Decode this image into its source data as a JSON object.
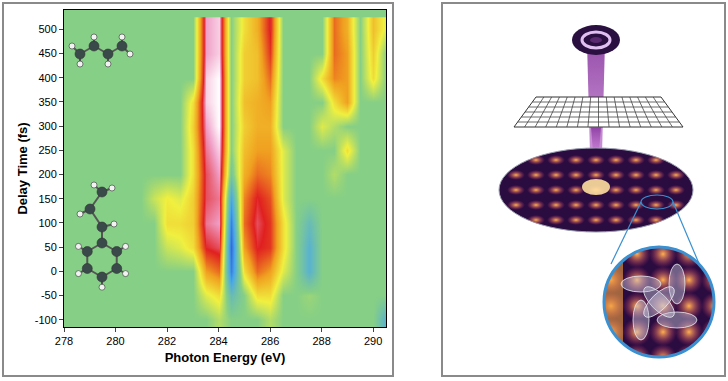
{
  "chart_data": {
    "type": "heatmap",
    "x_label": "Photon Energy (eV)",
    "y_label": "Delay Time (fs)",
    "x": [
      278,
      278.5,
      279,
      279.5,
      280,
      280.5,
      281,
      281.5,
      282,
      282.5,
      283,
      283.5,
      284,
      284.5,
      285,
      285.5,
      286,
      286.5,
      287,
      287.5,
      288,
      288.5,
      289,
      289.5,
      290,
      290.5
    ],
    "y": [
      -100,
      -50,
      0,
      50,
      100,
      150,
      200,
      250,
      300,
      350,
      400,
      450,
      500
    ],
    "z": [
      [
        0,
        0,
        0,
        0,
        0,
        0,
        0,
        0,
        0,
        0,
        0,
        0,
        0.1,
        0,
        0,
        0,
        0.1,
        0,
        0,
        0,
        0,
        0,
        0,
        0,
        0,
        -0.3
      ],
      [
        0,
        0,
        0,
        0,
        0,
        0,
        0,
        0,
        0,
        0,
        0,
        0.2,
        0.3,
        -0.2,
        0,
        0.3,
        0.3,
        0,
        0,
        0.05,
        0,
        0,
        0,
        0,
        0,
        0
      ],
      [
        0,
        0,
        0,
        0,
        0,
        0,
        0,
        0,
        0,
        0,
        0,
        0.5,
        0.6,
        -0.6,
        0.3,
        0.6,
        0.5,
        0.2,
        0,
        -0.3,
        0,
        0,
        0,
        0,
        0,
        0
      ],
      [
        0,
        0,
        0,
        0,
        0,
        0,
        0,
        0,
        0.15,
        0.2,
        0.3,
        0.75,
        0.8,
        -0.7,
        0.5,
        0.75,
        0.7,
        0.3,
        0,
        -0.3,
        0,
        0,
        0,
        0,
        0,
        0
      ],
      [
        0,
        0,
        0,
        0,
        0,
        0,
        0,
        0,
        0.3,
        0.3,
        0.35,
        0.85,
        0.9,
        -0.6,
        0.6,
        0.8,
        0.7,
        0.3,
        0,
        -0.2,
        0,
        0,
        0,
        0,
        0,
        0
      ],
      [
        0,
        0,
        0,
        0,
        0,
        0,
        0,
        0.15,
        0.25,
        0.2,
        0.35,
        0.8,
        0.85,
        -0.4,
        0.55,
        0.75,
        0.65,
        0.2,
        0,
        0,
        0,
        0,
        0,
        0,
        0,
        0
      ],
      [
        0,
        0,
        0,
        0,
        0,
        0,
        0,
        0,
        0,
        0,
        0.3,
        0.8,
        0.9,
        -0.1,
        0.45,
        0.6,
        0.55,
        0.2,
        0,
        0,
        0,
        0.1,
        0,
        0,
        0,
        0
      ],
      [
        0,
        0,
        0,
        0,
        0,
        0,
        0,
        0,
        0,
        0,
        0.3,
        0.85,
        0.95,
        0,
        0.4,
        0.5,
        0.5,
        0.2,
        0,
        0,
        0,
        0,
        0.3,
        0,
        0,
        0
      ],
      [
        0,
        0,
        0,
        0,
        0,
        0,
        0,
        0,
        0,
        0,
        0.35,
        0.9,
        1,
        0,
        0.35,
        0.45,
        0.45,
        0,
        0,
        0,
        0.2,
        0.1,
        0,
        0,
        0,
        0
      ],
      [
        0,
        0,
        0,
        0,
        0,
        0,
        0,
        0,
        0,
        0,
        0.3,
        0.95,
        1,
        0,
        0.4,
        0.45,
        0.5,
        0,
        0,
        0,
        0,
        0.3,
        0.5,
        0,
        0,
        0
      ],
      [
        0,
        0,
        0,
        0,
        0,
        0,
        0,
        0,
        0,
        0,
        0,
        0.95,
        1,
        0,
        0.35,
        0.4,
        0.6,
        0,
        0,
        0,
        0.3,
        0.55,
        0.5,
        0,
        0.3,
        0
      ],
      [
        0,
        0,
        0,
        0,
        0,
        0,
        0,
        0,
        0,
        0,
        0,
        0.9,
        0.95,
        0,
        0.35,
        0.4,
        0.7,
        0,
        0,
        0,
        0,
        0.6,
        0.5,
        0,
        0.35,
        0
      ],
      [
        0,
        0,
        0,
        0,
        0,
        0,
        0,
        0,
        0,
        0,
        0,
        0.9,
        0.95,
        0,
        0.3,
        0.45,
        0.75,
        0,
        0,
        0,
        0,
        0.6,
        0.45,
        0,
        0.4,
        0.2
      ]
    ],
    "zlim": [
      -1,
      1
    ],
    "xlim": [
      278,
      290.5
    ],
    "ylim": [
      -115,
      540
    ],
    "xticks": [
      278,
      280,
      282,
      284,
      286,
      288,
      290
    ],
    "yticks": [
      -100,
      -50,
      0,
      50,
      100,
      150,
      200,
      250,
      300,
      350,
      400,
      450,
      500
    ],
    "grid": false
  }
}
